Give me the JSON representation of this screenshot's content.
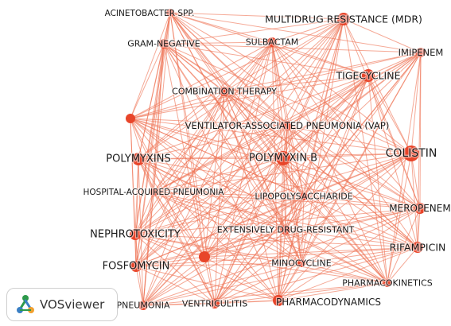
{
  "app": {
    "brand_name": "VOSviewer"
  },
  "colors": {
    "edge": "#ee7050",
    "node": "#e8452a",
    "label": "#1a1a1a",
    "logo_green": "#2d9a4a",
    "logo_blue": "#3a7fc4",
    "logo_orange": "#f0a030"
  },
  "network": {
    "nodes": [
      {
        "id": "acinetobacter",
        "label": "ACINETOBACTER SPP."
      },
      {
        "id": "mdr",
        "label": "MULTIDRUG RESISTANCE (MDR)"
      },
      {
        "id": "gram_negative",
        "label": "GRAM-NEGATIVE"
      },
      {
        "id": "sulbactam",
        "label": "SULBACTAM"
      },
      {
        "id": "imipenem",
        "label": "IMIPENEM"
      },
      {
        "id": "tigecycline",
        "label": "TIGECYCLINE"
      },
      {
        "id": "combination",
        "label": "COMBINATION THERAPY"
      },
      {
        "id": "vap",
        "label": "VENTILATOR-ASSOCIATED PNEUMONIA (VAP)"
      },
      {
        "id": "colistin",
        "label": "COLISTIN"
      },
      {
        "id": "polymyxins",
        "label": "POLYMYXINS"
      },
      {
        "id": "polymyxin_b",
        "label": "POLYMYXIN B"
      },
      {
        "id": "hap",
        "label": "HOSPITAL-ACQUIRED PNEUMONIA"
      },
      {
        "id": "lps",
        "label": "LIPOPOLYSACCHARIDE"
      },
      {
        "id": "meropenem",
        "label": "MEROPENEM"
      },
      {
        "id": "nephrotoxicity",
        "label": "NEPHROTOXICITY"
      },
      {
        "id": "xdr",
        "label": "EXTENSIVELY DRUG-RESISTANT"
      },
      {
        "id": "rifampicin",
        "label": "RIFAMPICIN"
      },
      {
        "id": "fosfomycin",
        "label": "FOSFOMYCIN"
      },
      {
        "id": "minocycline",
        "label": "MINOCYCLINE"
      },
      {
        "id": "pk",
        "label": "PHARMACOKINETICS"
      },
      {
        "id": "pneumonia",
        "label": "PNEUMONIA"
      },
      {
        "id": "ventriculitis",
        "label": "VENTRICULITIS"
      },
      {
        "id": "pd",
        "label": "PHARMACODYNAMICS"
      },
      {
        "id": "unlabeled_left",
        "label": ""
      },
      {
        "id": "unlabeled_mid",
        "label": ""
      }
    ]
  }
}
